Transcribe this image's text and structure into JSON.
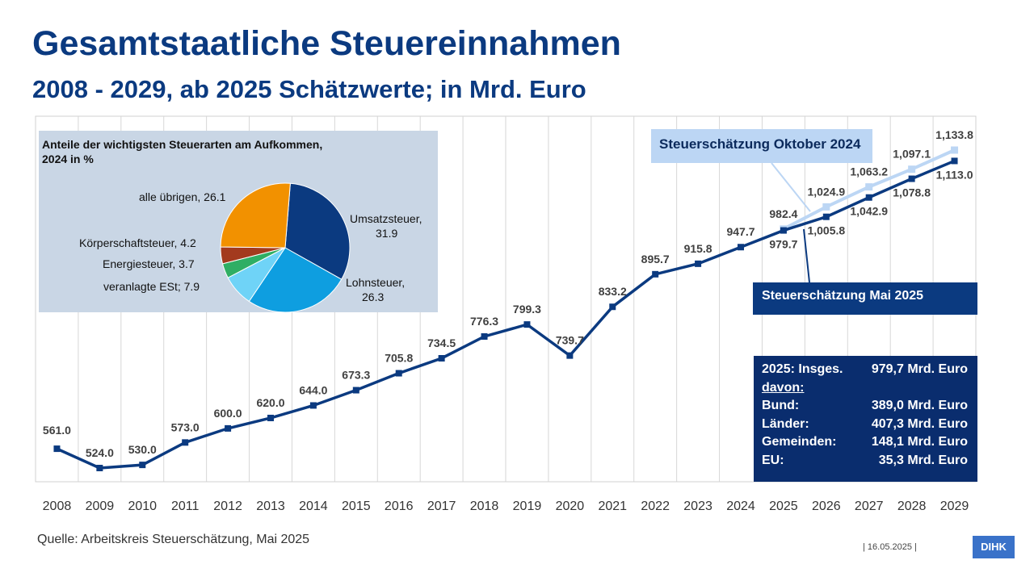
{
  "header": {
    "title": "Gesamtstaatliche Steuereinnahmen",
    "subtitle": "2008 - 2029, ab 2025 Schätzwerte; in Mrd. Euro"
  },
  "chart_data": [
    {
      "type": "line",
      "x": [
        "2008",
        "2009",
        "2010",
        "2011",
        "2012",
        "2013",
        "2014",
        "2015",
        "2016",
        "2017",
        "2018",
        "2019",
        "2020",
        "2021",
        "2022",
        "2023",
        "2024",
        "2025",
        "2026",
        "2027",
        "2028",
        "2029"
      ],
      "series": [
        {
          "name": "Steuerschätzung Mai 2025",
          "color": "#0b3a80",
          "values": [
            561.0,
            524.0,
            530.0,
            573.0,
            600.0,
            620.0,
            644.0,
            673.3,
            705.8,
            734.5,
            776.3,
            799.3,
            739.7,
            833.2,
            895.7,
            915.8,
            947.7,
            979.7,
            1005.8,
            1042.9,
            1078.8,
            1113.0
          ],
          "labels": [
            "561.0",
            "524.0",
            "530.0",
            "573.0",
            "600.0",
            "620.0",
            "644.0",
            "673.3",
            "705.8",
            "734.5",
            "776.3",
            "799.3",
            "739.7",
            "833.2",
            "895.7",
            "915.8",
            "947.7",
            "979.7",
            "1,005.8",
            "1,042.9",
            "1,078.8",
            "1,113.0"
          ]
        },
        {
          "name": "Steuerschätzung Oktober 2024",
          "color": "#bcd6f4",
          "x": [
            "2025",
            "2026",
            "2027",
            "2028",
            "2029"
          ],
          "values": [
            982.4,
            1024.9,
            1063.2,
            1097.1,
            1133.8
          ],
          "labels": [
            "982.4",
            "1,024.9",
            "1,063.2",
            "1,097.1",
            "1,133.8"
          ]
        }
      ],
      "grid": "vertical"
    },
    {
      "type": "pie",
      "title": "Anteile der wichtigsten Steuerarten am Aufkommen, 2024 in %",
      "slices": [
        {
          "label": "Umsatzsteuer, 31.9",
          "value": 31.9,
          "color": "#0b3a80"
        },
        {
          "label": "Lohnsteuer, 26.3",
          "value": 26.3,
          "color": "#0e9ee0"
        },
        {
          "label": "veranlagte ESt; 7.9",
          "value": 7.9,
          "color": "#6fd3f7"
        },
        {
          "label": "Energiesteuer, 3.7",
          "value": 3.7,
          "color": "#2fae64"
        },
        {
          "label": "Körperschaftsteuer, 4.2",
          "value": 4.2,
          "color": "#a33a1e"
        },
        {
          "label": "alle übrigen, 26.1",
          "value": 26.1,
          "color": "#f29100"
        }
      ]
    }
  ],
  "pie_labels": {
    "title_line1": "Anteile der wichtigsten Steuerarten am Aufkommen,",
    "title_line2": "2024 in %",
    "umsatz_1": "Umsatzsteuer,",
    "umsatz_2": "31.9",
    "lohn_1": "Lohnsteuer,",
    "lohn_2": "26.3",
    "est": "veranlagte ESt; 7.9",
    "energie": "Energiesteuer, 3.7",
    "koerp": "Körperschaftsteuer, 4.2",
    "uebrige": "alle übrigen, 26.1"
  },
  "callouts": {
    "october": "Steuerschätzung Oktober 2024",
    "may": "Steuerschätzung Mai 2025"
  },
  "info_box": {
    "rows": [
      {
        "left": "2025: Insges.",
        "right": "979,7 Mrd. Euro"
      },
      {
        "left": "davon:",
        "right": ""
      },
      {
        "left": "Bund:",
        "right": "389,0 Mrd. Euro"
      },
      {
        "left": "Länder:",
        "right": "407,3 Mrd. Euro"
      },
      {
        "left": "Gemeinden:",
        "right": "148,1 Mrd. Euro"
      },
      {
        "left": "EU:",
        "right": "35,3 Mrd. Euro"
      }
    ]
  },
  "footer": {
    "source": "Quelle: Arbeitskreis Steuerschätzung, Mai 2025",
    "date": "|    16.05.2025    |",
    "logo": "DIHK"
  }
}
